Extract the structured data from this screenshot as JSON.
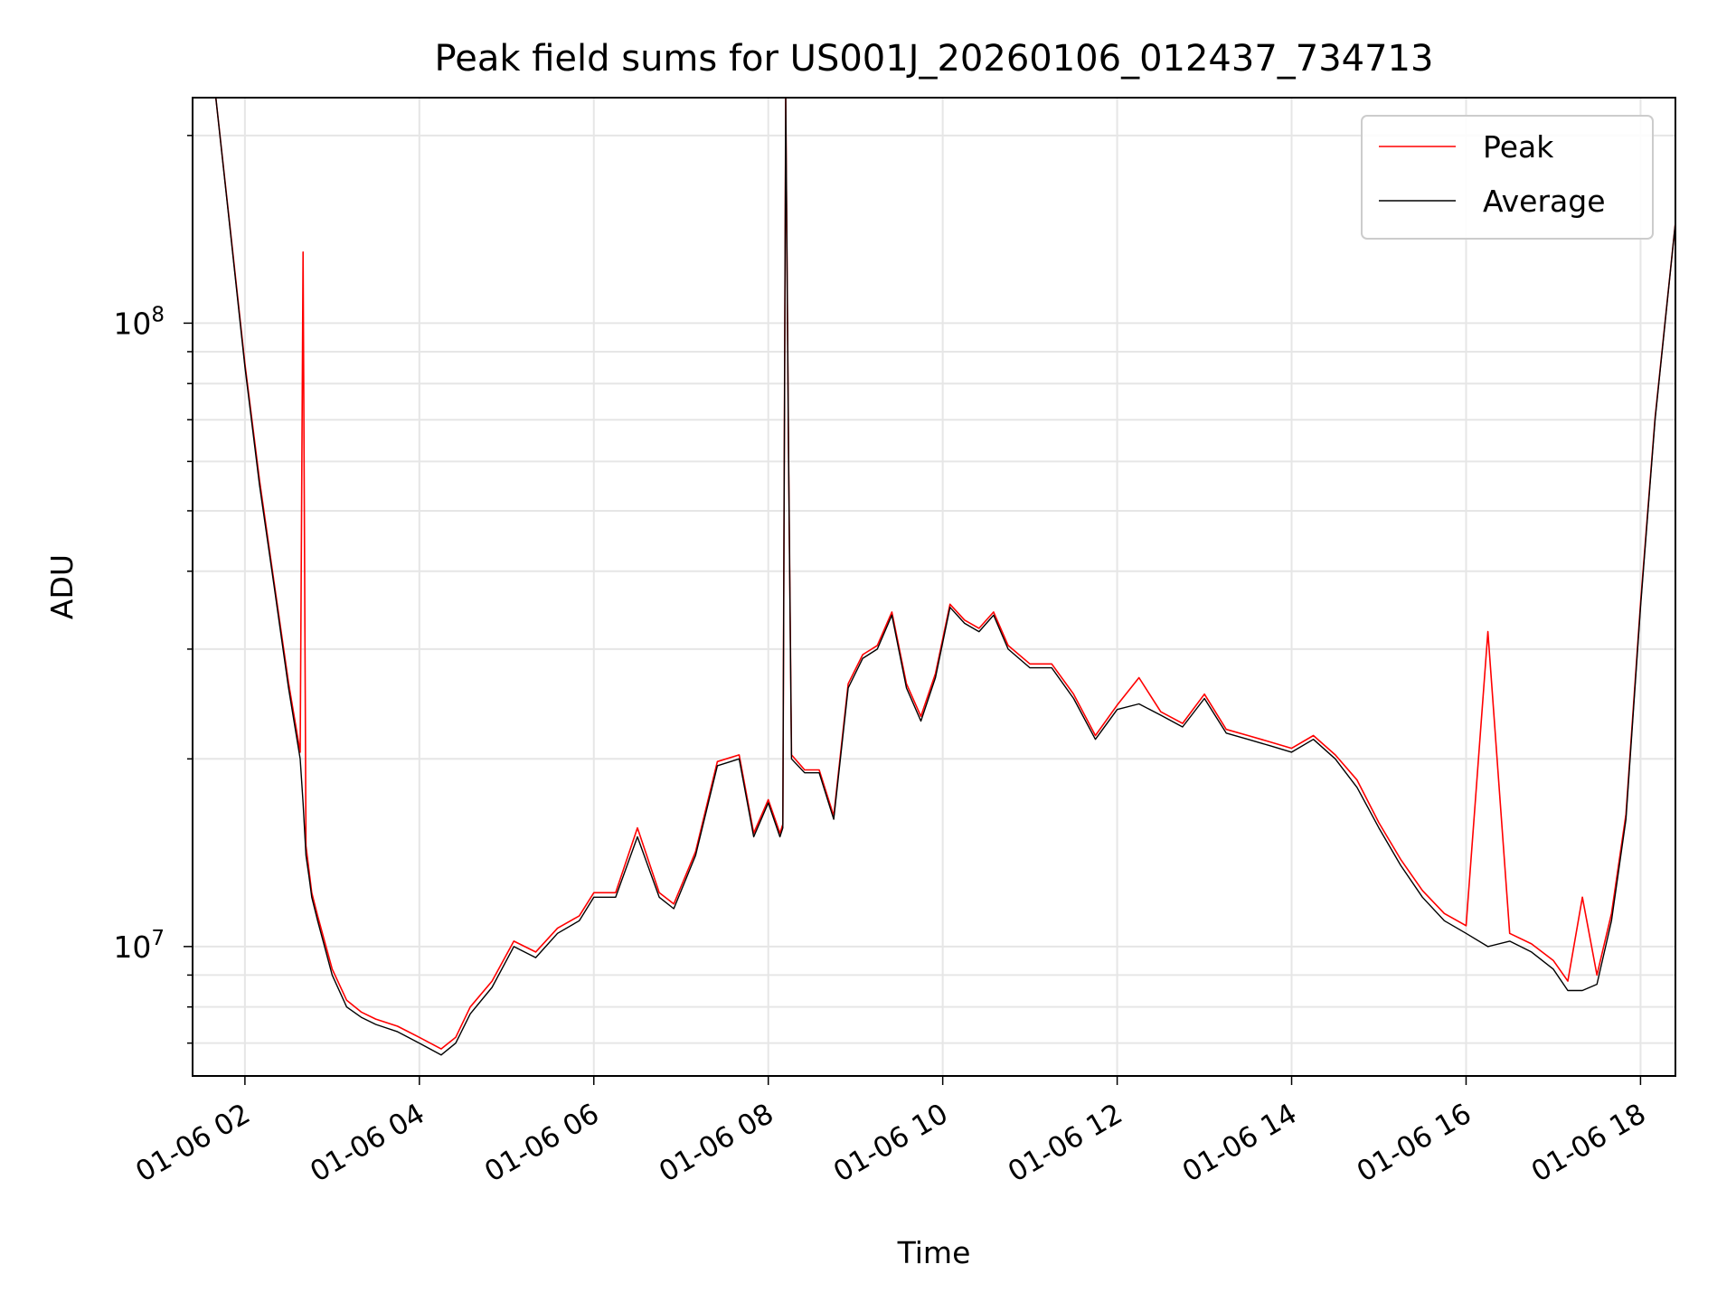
{
  "chart_data": {
    "type": "line",
    "title": "Peak field sums for US001J_20260106_012437_734713",
    "xlabel": "Time",
    "ylabel": "ADU",
    "yscale": "log",
    "ylim": [
      6200000,
      230000000
    ],
    "xlim": [
      "01-06 01:24",
      "01-06 18:24"
    ],
    "x_ticks": [
      "01-06 02",
      "01-06 04",
      "01-06 06",
      "01-06 08",
      "01-06 10",
      "01-06 12",
      "01-06 14",
      "01-06 16",
      "01-06 18"
    ],
    "y_major_ticks": [
      {
        "value": 10000000,
        "base": "10",
        "exp": "7"
      },
      {
        "value": 100000000,
        "base": "10",
        "exp": "8"
      }
    ],
    "grid": true,
    "legend_position": "top-right",
    "legend": [
      {
        "name": "Peak",
        "color": "#ff0000"
      },
      {
        "name": "Average",
        "color": "#000000"
      }
    ],
    "colors": {
      "peak": "#ff0000",
      "average": "#000000",
      "grid": "#e6e6e6"
    },
    "series": [
      {
        "name": "Average",
        "x": [
          "01-06 01:24",
          "01-06 01:40",
          "01-06 01:50",
          "01-06 02:00",
          "01-06 02:10",
          "01-06 02:20",
          "01-06 02:30",
          "01-06 02:38",
          "01-06 02:40",
          "01-06 02:42",
          "01-06 02:44",
          "01-06 02:46",
          "01-06 02:50",
          "01-06 03:00",
          "01-06 03:10",
          "01-06 03:20",
          "01-06 03:30",
          "01-06 03:45",
          "01-06 04:00",
          "01-06 04:15",
          "01-06 04:25",
          "01-06 04:35",
          "01-06 04:50",
          "01-06 05:05",
          "01-06 05:20",
          "01-06 05:35",
          "01-06 05:50",
          "01-06 06:00",
          "01-06 06:15",
          "01-06 06:30",
          "01-06 06:45",
          "01-06 06:55",
          "01-06 07:10",
          "01-06 07:25",
          "01-06 07:40",
          "01-06 07:50",
          "01-06 08:00",
          "01-06 08:08",
          "01-06 08:10",
          "01-06 08:12",
          "01-06 08:14",
          "01-06 08:16",
          "01-06 08:25",
          "01-06 08:35",
          "01-06 08:45",
          "01-06 08:55",
          "01-06 09:05",
          "01-06 09:15",
          "01-06 09:25",
          "01-06 09:35",
          "01-06 09:45",
          "01-06 09:55",
          "01-06 10:05",
          "01-06 10:15",
          "01-06 10:25",
          "01-06 10:35",
          "01-06 10:45",
          "01-06 11:00",
          "01-06 11:15",
          "01-06 11:30",
          "01-06 11:45",
          "01-06 12:00",
          "01-06 12:15",
          "01-06 12:30",
          "01-06 12:45",
          "01-06 13:00",
          "01-06 13:15",
          "01-06 13:30",
          "01-06 13:45",
          "01-06 14:00",
          "01-06 14:15",
          "01-06 14:30",
          "01-06 14:45",
          "01-06 15:00",
          "01-06 15:15",
          "01-06 15:30",
          "01-06 15:45",
          "01-06 16:00",
          "01-06 16:15",
          "01-06 16:30",
          "01-06 16:45",
          "01-06 17:00",
          "01-06 17:10",
          "01-06 17:20",
          "01-06 17:30",
          "01-06 17:40",
          "01-06 17:50",
          "01-06 18:00",
          "01-06 18:10",
          "01-06 18:24"
        ],
        "values": [
          230000000,
          230000000,
          140000000,
          85000000,
          55000000,
          38000000,
          26000000,
          20000000,
          17000000,
          14000000,
          13000000,
          12000000,
          11000000,
          9000000,
          8000000,
          7700000,
          7500000,
          7300000,
          7000000,
          6700000,
          7000000,
          7800000,
          8600000,
          10000000,
          9600000,
          10500000,
          11000000,
          12000000,
          12000000,
          15000000,
          12000000,
          11500000,
          14000000,
          19500000,
          20000000,
          15000000,
          17000000,
          15000000,
          15500000,
          230000000,
          60000000,
          20000000,
          19000000,
          19000000,
          16000000,
          26000000,
          29000000,
          30000000,
          34000000,
          26000000,
          23000000,
          27000000,
          35000000,
          33000000,
          32000000,
          34000000,
          30000000,
          28000000,
          28000000,
          25000000,
          21500000,
          24000000,
          24500000,
          23500000,
          22500000,
          25000000,
          22000000,
          21500000,
          21000000,
          20500000,
          21500000,
          20000000,
          18000000,
          15500000,
          13500000,
          12000000,
          11000000,
          10500000,
          10000000,
          10200000,
          9800000,
          9200000,
          8500000,
          8500000,
          8700000,
          11000000,
          16000000,
          35000000,
          70000000,
          145000000
        ]
      },
      {
        "name": "Peak",
        "x": [
          "01-06 01:24",
          "01-06 01:40",
          "01-06 01:50",
          "01-06 02:00",
          "01-06 02:10",
          "01-06 02:20",
          "01-06 02:30",
          "01-06 02:38",
          "01-06 02:40",
          "01-06 02:42",
          "01-06 02:44",
          "01-06 02:46",
          "01-06 02:50",
          "01-06 03:00",
          "01-06 03:10",
          "01-06 03:20",
          "01-06 03:30",
          "01-06 03:45",
          "01-06 04:00",
          "01-06 04:15",
          "01-06 04:25",
          "01-06 04:35",
          "01-06 04:50",
          "01-06 05:05",
          "01-06 05:20",
          "01-06 05:35",
          "01-06 05:50",
          "01-06 06:00",
          "01-06 06:15",
          "01-06 06:30",
          "01-06 06:45",
          "01-06 06:55",
          "01-06 07:10",
          "01-06 07:25",
          "01-06 07:40",
          "01-06 07:50",
          "01-06 08:00",
          "01-06 08:08",
          "01-06 08:10",
          "01-06 08:12",
          "01-06 08:14",
          "01-06 08:16",
          "01-06 08:25",
          "01-06 08:35",
          "01-06 08:45",
          "01-06 08:55",
          "01-06 09:05",
          "01-06 09:15",
          "01-06 09:25",
          "01-06 09:35",
          "01-06 09:45",
          "01-06 09:55",
          "01-06 10:05",
          "01-06 10:15",
          "01-06 10:25",
          "01-06 10:35",
          "01-06 10:45",
          "01-06 11:00",
          "01-06 11:15",
          "01-06 11:30",
          "01-06 11:45",
          "01-06 12:00",
          "01-06 12:15",
          "01-06 12:30",
          "01-06 12:45",
          "01-06 13:00",
          "01-06 13:15",
          "01-06 13:30",
          "01-06 13:45",
          "01-06 14:00",
          "01-06 14:15",
          "01-06 14:30",
          "01-06 14:45",
          "01-06 15:00",
          "01-06 15:15",
          "01-06 15:30",
          "01-06 15:45",
          "01-06 16:00",
          "01-06 16:15",
          "01-06 16:30",
          "01-06 16:45",
          "01-06 17:00",
          "01-06 17:10",
          "01-06 17:20",
          "01-06 17:30",
          "01-06 17:40",
          "01-06 17:50",
          "01-06 18:00",
          "01-06 18:10",
          "01-06 18:24"
        ],
        "values": [
          230000000,
          230000000,
          141000000,
          86000000,
          56000000,
          38500000,
          26500000,
          20500000,
          130000000,
          14500000,
          13300000,
          12200000,
          11200000,
          9200000,
          8200000,
          7850000,
          7650000,
          7450000,
          7150000,
          6850000,
          7150000,
          8000000,
          8800000,
          10200000,
          9800000,
          10700000,
          11200000,
          12200000,
          12200000,
          15500000,
          12200000,
          11700000,
          14200000,
          19800000,
          20300000,
          15200000,
          17200000,
          15200000,
          15700000,
          232000000,
          60500000,
          20300000,
          19200000,
          19200000,
          16200000,
          26400000,
          29400000,
          30400000,
          34400000,
          26400000,
          23400000,
          27400000,
          35400000,
          33400000,
          32400000,
          34400000,
          30400000,
          28400000,
          28400000,
          25400000,
          21800000,
          24400000,
          27000000,
          23800000,
          22800000,
          25400000,
          22300000,
          21800000,
          21300000,
          20800000,
          21800000,
          20300000,
          18500000,
          15800000,
          13800000,
          12300000,
          11300000,
          10800000,
          32000000,
          10500000,
          10100000,
          9500000,
          8800000,
          12000000,
          9000000,
          11300000,
          16300000,
          35500000,
          70500000,
          145000000
        ]
      }
    ]
  }
}
